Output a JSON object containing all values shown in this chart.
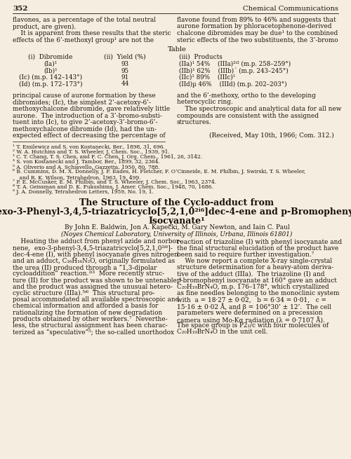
{
  "bg_color": "#f4ede0",
  "text_color": "#1a1008",
  "page_number": "352",
  "journal_name": "Chemical Communications",
  "top_left_lines": [
    "flavones, as a percentage of the total neutral",
    "product, are given).",
    "    It is apparent from these results that the steric",
    "effects of the 6’-methoxyl group¹ are not the"
  ],
  "top_right_lines": [
    "flavone found from 89% to 46% and suggests that",
    "aurone formation by phloracetophenone-derived",
    "chalcone dibromides may be due¹ to the combined",
    "steric effects of the two substituents, the 3’-bromo"
  ],
  "table_title": "Table",
  "table_col1_header": "(i)  Dibromide",
  "table_col2_header": "(ii)  Yield (%)",
  "table_col3_header": "(iii)  Products",
  "table_rows": [
    [
      "(Ia)¹",
      "93",
      "(IIa)¹ 54%    (IIIa)²ⁱ³ (m.p. 258–259°)"
    ],
    [
      "(Ib)¹",
      "95",
      "(IIb)¹ 62%    (IIIb)´ (m.p. 243–245°)"
    ],
    [
      "(Ic) (m.p. 142–143°)",
      "91",
      "(IIc)¹ 89%    (IIIc)¹"
    ],
    [
      "(Id) (m.p. 172–173°)",
      "44",
      "(IId)µ 46%    (IIId) (m.p. 202–203°)"
    ]
  ],
  "middle_left_lines": [
    "principal cause of aurone formation by these",
    "dibromides; (Ic), the simplest 2’-acetoxy-6’-",
    "methoxychalcone dibromide, gave relatively little",
    "aurone.  The introduction of a 3’-bromo-substi-",
    "tuent into (Ic), to give 2’-acetoxy-3’-bromo-6’-",
    "methoxychalcone dibromide (Id), had the un-",
    "expected effect of decreasing the percentage of"
  ],
  "middle_right_lines": [
    "and the 6’-methoxy, ortho to the developing",
    "heterocyclic ring.",
    "    The spectroscopic and analytical data for all new",
    "compounds are consistent with the assigned",
    "structures.",
    "",
    "                (Received, May 10th, 1966; Com. 312.)"
  ],
  "footnotes": [
    "¹ T. Emilewicz and S. von Kostanecki, Ber., 1898, 31, 696.",
    "² W. A. Hutchins and T. S. Wheeler, J. Chem. Soc., 1939, 91.",
    "³ C. T. Chang, T. S. Chen, and F. C. Chen, J. Org. Chem., 1961, 26, 3142.",
    "⁴ S. von Kostanecki and J. Tambor, Ber., 1899, 32, 2364.",
    "⁵ A. Oliverio and A. Schiavello, Gazzetta, 1950, 80, 788.",
    "⁶ B. Cummins, D. M. X. Donnelly, J. F. Eades, H. Fletcher, F. O’Cinneide, E. M. Philbin, J. Swirski, T. S. Wheeler,",
    "    and R. K. Wilson, Tetrahedron, 1963, 19, 499.",
    "⁷ P. E. McCusker, E. M. Philbin, and T. S. Wheeler, J. Chem. Soc., 1963, 2374.",
    "⁸ T. A. Geissman and D. K. Fukushima, J. Amer. Chem. Soc., 1948, 70, 1686.",
    "⁹ J. A. Donnelly, Tetrahedron Letters, 1959, No. 19, 1."
  ],
  "article_title_line1": "The Structure of the Cyclo-adduct from",
  "article_title_line2": "exo-3-Phenyl-3,4,5-triazatricyclo[5,2,1,0²ⁱ⁶]dec-4-ene and p-Bromophenyl",
  "article_title_line3": "Isocyanate¹",
  "article_authors": "By John E. Baldwin, Jon A. Kapecki, M. Gary Newton, and Iain C. Paul",
  "article_affiliation": "(Noyes Chemical Laboratory, University of Illinois, Urbana, Illinois 61801)",
  "body_left_lines": [
    "    Heating the adduct from phenyl azide and norbor-",
    "nene,  exo-3-phenyl-3,4,5-triazatricyclo[5,2,1,0²ⁱ⁶]-",
    "dec-4-ene (I), with phenyl isocyanate gives nitrogen",
    "and an adduct, C₁₆H₁₆N₂O, originally formulated as",
    "the urea (II) produced through a “1,3-dipolar",
    "cycloaddition” reaction.²ⁱ³  More recently struc-",
    "ture (II) for the product was shown to be untenable,⁴",
    "and the product was assigned the unusual hetero-",
    "cyclic structure (IIIa).⁵ⁱ⁶  This structural pro-",
    "posal accommodated all available spectroscopic and",
    "chemical information and afforded a basis for",
    "rationalizing the formation of new degradation",
    "products obtained by other workers.⁷  Neverthe-",
    "less, the structural assignment has been charac-",
    "terized as “speculative”⁵; the so-called unorthodox"
  ],
  "body_right_lines": [
    "reaction of triazoline (I) with phenyl isocyanate and",
    "the final structural elucidation of the product have",
    "been said to require further investigation.⁷",
    "    We now report a complete X-ray single-crystal",
    "structure determination for a heavy-atom deriva-",
    "tive of the adduct (IIIa).  The triazoline (I) and",
    "p-bromophenyl isocyanate at 160° gave an adduct",
    "C₂₀H₁₉BrN₄O, m.p. 176–178°, which crystallized",
    "as fine needles belonging to the monoclinic system",
    "with  a = 18·27 ± 0·02,   b = 6·34 = 0·01,   c =",
    "15·16 ± 0·02 Å, and β = 106°30’ ± 12’.  The cell",
    "parameters were determined on a precession",
    "camera using Mo-Kα radiation (λ = 0·7107 Å).",
    "The space group is P2₁/c with four molecules of",
    "C₂₀H₁₉BrN₄O in the unit cell."
  ]
}
